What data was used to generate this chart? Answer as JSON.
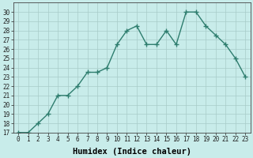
{
  "x": [
    0,
    1,
    2,
    3,
    4,
    5,
    6,
    7,
    8,
    9,
    10,
    11,
    12,
    13,
    14,
    15,
    16,
    17,
    18,
    19,
    20,
    21,
    22,
    23
  ],
  "y": [
    17,
    17,
    18,
    19,
    21,
    21,
    22,
    23.5,
    23.5,
    24,
    26.5,
    28,
    28.5,
    26.5,
    26.5,
    28,
    26.5,
    30,
    30,
    28.5,
    27.5,
    26.5,
    25,
    23
  ],
  "line_color": "#2e7d6e",
  "marker": "+",
  "marker_size": 4,
  "bg_color": "#c8ecea",
  "grid_color": "#a8ccc8",
  "xlabel": "Humidex (Indice chaleur)",
  "ylim": [
    17,
    31
  ],
  "xlim": [
    -0.5,
    23.5
  ],
  "yticks": [
    17,
    18,
    19,
    20,
    21,
    22,
    23,
    24,
    25,
    26,
    27,
    28,
    29,
    30
  ],
  "xticks": [
    0,
    1,
    2,
    3,
    4,
    5,
    6,
    7,
    8,
    9,
    10,
    11,
    12,
    13,
    14,
    15,
    16,
    17,
    18,
    19,
    20,
    21,
    22,
    23
  ],
  "xtick_labels": [
    "0",
    "1",
    "2",
    "3",
    "4",
    "5",
    "6",
    "7",
    "8",
    "9",
    "10",
    "11",
    "12",
    "13",
    "14",
    "15",
    "16",
    "17",
    "18",
    "19",
    "20",
    "21",
    "22",
    "23"
  ],
  "line_width": 1.0,
  "tick_fontsize": 5.5,
  "xlabel_fontsize": 7.5
}
